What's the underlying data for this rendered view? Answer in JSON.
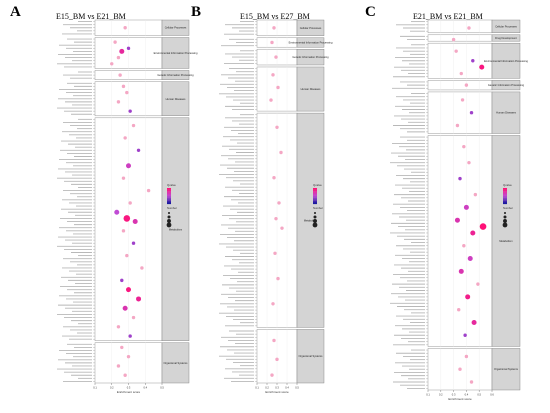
{
  "figure": {
    "panels": [
      {
        "letter": "A",
        "title": "E15_BM vs E21_BM"
      },
      {
        "letter": "B",
        "title": "E15_BM vs E27_BM"
      },
      {
        "letter": "C",
        "title": "E21_BM vs E21_BM"
      }
    ]
  },
  "colors": {
    "low": "#1a1aa0",
    "mid": "#c04bd4",
    "high": "#ff1177",
    "strip_bg": "#d4d4d4",
    "strip_border": "#777777",
    "grid": "#ececec",
    "point_default": "#f4a7c4"
  },
  "chart_data": [
    {
      "type": "scatter",
      "title": "E15_BM vs E21_BM",
      "xlabel": "Enrichment score",
      "xlim": [
        0.1,
        0.5
      ],
      "x_ticks": [
        "0.1",
        "0.2",
        "0.3",
        "0.4",
        "0.5"
      ],
      "grid": true,
      "legend_position": "right",
      "legend": {
        "color_title": "Qvalue",
        "size_title": "Number"
      },
      "facets": [
        {
          "label": "Cellular Processes",
          "rows": 5,
          "points": [
            {
              "row": 2,
              "x": 0.28,
              "size": 1,
              "color": 0.2
            }
          ]
        },
        {
          "label": "Environmental Information Processing",
          "rows": 10,
          "points": [
            {
              "row": 1,
              "x": 0.22,
              "size": 1,
              "color": 0.3
            },
            {
              "row": 3,
              "x": 0.3,
              "size": 1,
              "color": 0.4
            },
            {
              "row": 4,
              "x": 0.26,
              "size": 2,
              "color": 0.8
            },
            {
              "row": 6,
              "x": 0.24,
              "size": 1,
              "color": 0.3
            },
            {
              "row": 8,
              "x": 0.2,
              "size": 1,
              "color": 0.2
            }
          ]
        },
        {
          "label": "Genetic Information Processing",
          "rows": 3,
          "points": [
            {
              "row": 1,
              "x": 0.25,
              "size": 1,
              "color": 0.2
            }
          ]
        },
        {
          "label": "Human Diseases",
          "rows": 11,
          "points": [
            {
              "row": 1,
              "x": 0.27,
              "size": 1,
              "color": 0.3
            },
            {
              "row": 3,
              "x": 0.29,
              "size": 1,
              "color": 0.3
            },
            {
              "row": 6,
              "x": 0.24,
              "size": 1,
              "color": 0.2
            },
            {
              "row": 9,
              "x": 0.31,
              "size": 1,
              "color": 0.4
            }
          ]
        },
        {
          "label": "Metabolism",
          "rows": 72,
          "points": [
            {
              "row": 2,
              "x": 0.33,
              "size": 1,
              "color": 0.3
            },
            {
              "row": 6,
              "x": 0.28,
              "size": 1,
              "color": 0.3
            },
            {
              "row": 10,
              "x": 0.36,
              "size": 1,
              "color": 0.4
            },
            {
              "row": 15,
              "x": 0.3,
              "size": 2,
              "color": 0.6
            },
            {
              "row": 19,
              "x": 0.27,
              "size": 1,
              "color": 0.3
            },
            {
              "row": 23,
              "x": 0.42,
              "size": 1,
              "color": 0.3
            },
            {
              "row": 27,
              "x": 0.31,
              "size": 1,
              "color": 0.3
            },
            {
              "row": 30,
              "x": 0.23,
              "size": 2,
              "color": 0.5
            },
            {
              "row": 32,
              "x": 0.29,
              "size": 3,
              "color": 0.95
            },
            {
              "row": 33,
              "x": 0.34,
              "size": 2,
              "color": 0.7
            },
            {
              "row": 36,
              "x": 0.27,
              "size": 1,
              "color": 0.3
            },
            {
              "row": 40,
              "x": 0.33,
              "size": 1,
              "color": 0.4
            },
            {
              "row": 44,
              "x": 0.29,
              "size": 1,
              "color": 0.3
            },
            {
              "row": 48,
              "x": 0.38,
              "size": 1,
              "color": 0.3
            },
            {
              "row": 52,
              "x": 0.26,
              "size": 1,
              "color": 0.4
            },
            {
              "row": 55,
              "x": 0.3,
              "size": 2,
              "color": 0.95
            },
            {
              "row": 58,
              "x": 0.36,
              "size": 2,
              "color": 0.85
            },
            {
              "row": 61,
              "x": 0.28,
              "size": 2,
              "color": 0.7
            },
            {
              "row": 64,
              "x": 0.33,
              "size": 1,
              "color": 0.3
            },
            {
              "row": 67,
              "x": 0.24,
              "size": 1,
              "color": 0.3
            },
            {
              "row": 70,
              "x": 0.31,
              "size": 1,
              "color": 0.4
            }
          ]
        },
        {
          "label": "Organismal Systems",
          "rows": 13,
          "points": [
            {
              "row": 1,
              "x": 0.26,
              "size": 1,
              "color": 0.3
            },
            {
              "row": 4,
              "x": 0.3,
              "size": 1,
              "color": 0.3
            },
            {
              "row": 7,
              "x": 0.24,
              "size": 1,
              "color": 0.3
            },
            {
              "row": 10,
              "x": 0.28,
              "size": 1,
              "color": 0.2
            }
          ]
        }
      ]
    },
    {
      "type": "scatter",
      "title": "E15_BM vs E27_BM",
      "xlabel": "Enrichment score",
      "xlim": [
        0.1,
        0.5
      ],
      "x_ticks": [
        "0.1",
        "0.2",
        "0.3",
        "0.4",
        "0.5"
      ],
      "grid": true,
      "legend_position": "right",
      "legend": {
        "color_title": "Qvalue",
        "size_title": "Number"
      },
      "facets": [
        {
          "label": "Cellular Processes",
          "rows": 5,
          "points": [
            {
              "row": 2,
              "x": 0.27,
              "size": 1,
              "color": 0.2
            }
          ]
        },
        {
          "label": "Environmental Information Processing",
          "rows": 3,
          "points": [
            {
              "row": 1,
              "x": 0.25,
              "size": 1,
              "color": 0.2
            }
          ]
        },
        {
          "label": "Genetic Information Processing",
          "rows": 5,
          "points": [
            {
              "row": 2,
              "x": 0.29,
              "size": 1,
              "color": 0.3
            }
          ]
        },
        {
          "label": "Human Diseases",
          "rows": 14,
          "points": [
            {
              "row": 2,
              "x": 0.26,
              "size": 1,
              "color": 0.3
            },
            {
              "row": 6,
              "x": 0.31,
              "size": 1,
              "color": 0.3
            },
            {
              "row": 10,
              "x": 0.24,
              "size": 1,
              "color": 0.2
            }
          ]
        },
        {
          "label": "Metabolism",
          "rows": 68,
          "points": [
            {
              "row": 4,
              "x": 0.3,
              "size": 1,
              "color": 0.3
            },
            {
              "row": 12,
              "x": 0.34,
              "size": 1,
              "color": 0.3
            },
            {
              "row": 20,
              "x": 0.27,
              "size": 1,
              "color": 0.2
            },
            {
              "row": 28,
              "x": 0.32,
              "size": 1,
              "color": 0.3
            },
            {
              "row": 33,
              "x": 0.29,
              "size": 1,
              "color": 0.2
            },
            {
              "row": 36,
              "x": 0.35,
              "size": 1,
              "color": 0.3
            },
            {
              "row": 44,
              "x": 0.28,
              "size": 1,
              "color": 0.2
            },
            {
              "row": 52,
              "x": 0.31,
              "size": 1,
              "color": 0.3
            },
            {
              "row": 60,
              "x": 0.26,
              "size": 1,
              "color": 0.2
            }
          ]
        },
        {
          "label": "Organismal Systems",
          "rows": 17,
          "points": [
            {
              "row": 3,
              "x": 0.27,
              "size": 1,
              "color": 0.2
            },
            {
              "row": 9,
              "x": 0.3,
              "size": 1,
              "color": 0.3
            },
            {
              "row": 14,
              "x": 0.25,
              "size": 1,
              "color": 0.2
            }
          ]
        }
      ]
    },
    {
      "type": "scatter",
      "title": "E21_BM vs E21_BM",
      "xlabel": "Enrichment score",
      "xlim": [
        0.1,
        0.6
      ],
      "x_ticks": [
        "0.1",
        "0.2",
        "0.3",
        "0.4",
        "0.5",
        "0.6"
      ],
      "grid": true,
      "legend_position": "right",
      "legend": {
        "color_title": "Qvalue",
        "size_title": "Number"
      },
      "facets": [
        {
          "label": "Cellular Processes",
          "rows": 4,
          "points": [
            {
              "row": 2,
              "x": 0.42,
              "size": 1,
              "color": 0.3
            }
          ]
        },
        {
          "label": "Drug Development",
          "rows": 2,
          "points": [
            {
              "row": 1,
              "x": 0.3,
              "size": 1,
              "color": 0.2
            }
          ]
        },
        {
          "label": "Environmental Information Processing",
          "rows": 11,
          "points": [
            {
              "row": 2,
              "x": 0.32,
              "size": 1,
              "color": 0.3
            },
            {
              "row": 5,
              "x": 0.45,
              "size": 1,
              "color": 0.4
            },
            {
              "row": 7,
              "x": 0.52,
              "size": 2,
              "color": 0.95
            },
            {
              "row": 9,
              "x": 0.36,
              "size": 1,
              "color": 0.3
            }
          ]
        },
        {
          "label": "Genetic Information Processing",
          "rows": 3,
          "points": [
            {
              "row": 1,
              "x": 0.4,
              "size": 1,
              "color": 0.3
            }
          ]
        },
        {
          "label": "Human Diseases",
          "rows": 13,
          "points": [
            {
              "row": 2,
              "x": 0.37,
              "size": 1,
              "color": 0.3
            },
            {
              "row": 6,
              "x": 0.44,
              "size": 1,
              "color": 0.4
            },
            {
              "row": 10,
              "x": 0.33,
              "size": 1,
              "color": 0.3
            }
          ]
        },
        {
          "label": "Metabolism",
          "rows": 66,
          "points": [
            {
              "row": 3,
              "x": 0.38,
              "size": 1,
              "color": 0.3
            },
            {
              "row": 8,
              "x": 0.42,
              "size": 1,
              "color": 0.3
            },
            {
              "row": 13,
              "x": 0.35,
              "size": 1,
              "color": 0.4
            },
            {
              "row": 18,
              "x": 0.47,
              "size": 1,
              "color": 0.3
            },
            {
              "row": 22,
              "x": 0.4,
              "size": 2,
              "color": 0.6
            },
            {
              "row": 26,
              "x": 0.33,
              "size": 2,
              "color": 0.7
            },
            {
              "row": 28,
              "x": 0.53,
              "size": 3,
              "color": 1.0
            },
            {
              "row": 30,
              "x": 0.45,
              "size": 2,
              "color": 0.85
            },
            {
              "row": 34,
              "x": 0.38,
              "size": 1,
              "color": 0.3
            },
            {
              "row": 38,
              "x": 0.43,
              "size": 2,
              "color": 0.6
            },
            {
              "row": 42,
              "x": 0.36,
              "size": 2,
              "color": 0.7
            },
            {
              "row": 46,
              "x": 0.49,
              "size": 1,
              "color": 0.3
            },
            {
              "row": 50,
              "x": 0.41,
              "size": 2,
              "color": 0.9
            },
            {
              "row": 54,
              "x": 0.34,
              "size": 1,
              "color": 0.3
            },
            {
              "row": 58,
              "x": 0.46,
              "size": 2,
              "color": 0.8
            },
            {
              "row": 62,
              "x": 0.39,
              "size": 1,
              "color": 0.4
            }
          ]
        },
        {
          "label": "Organismal Systems",
          "rows": 13,
          "points": [
            {
              "row": 2,
              "x": 0.4,
              "size": 1,
              "color": 0.3
            },
            {
              "row": 6,
              "x": 0.35,
              "size": 1,
              "color": 0.3
            },
            {
              "row": 10,
              "x": 0.44,
              "size": 1,
              "color": 0.3
            }
          ]
        }
      ]
    }
  ]
}
